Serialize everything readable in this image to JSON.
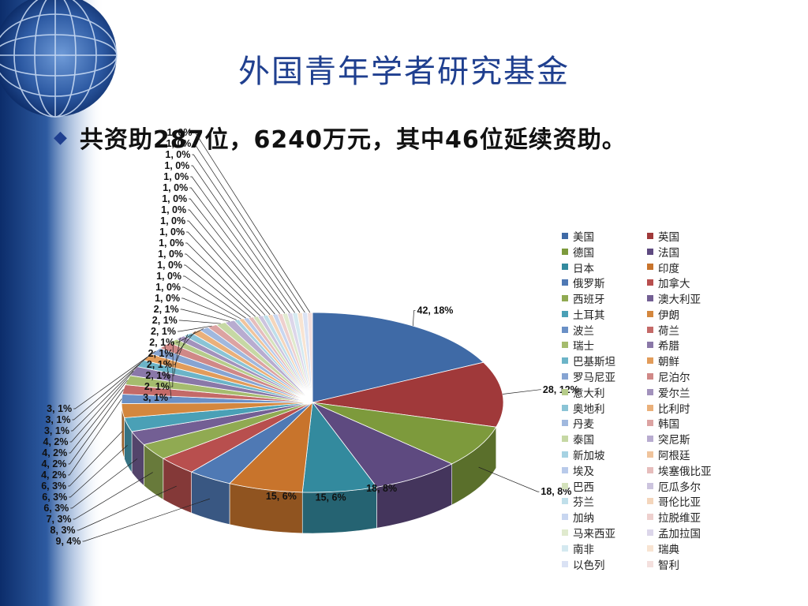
{
  "slide": {
    "title": "外国青年学者研究基金",
    "bullet": "共资助287位，6240万元，其中46位延续资助。"
  },
  "chart_data": {
    "type": "pie",
    "title": "",
    "series": [
      {
        "categories": [
          "美国",
          "英国",
          "德国",
          "法国",
          "日本",
          "印度",
          "俄罗斯",
          "加拿大",
          "西班牙",
          "澳大利亚",
          "土耳其",
          "伊朗",
          "波兰",
          "荷兰",
          "瑞士",
          "希腊",
          "巴基斯坦",
          "朝鲜",
          "罗马尼亚",
          "尼泊尔",
          "意大利",
          "爱尔兰",
          "奥地利",
          "比利时",
          "丹麦",
          "韩国",
          "泰国",
          "突尼斯",
          "新加坡",
          "阿根廷",
          "埃及",
          "埃塞俄比亚",
          "巴西",
          "厄瓜多尔",
          "芬兰",
          "哥伦比亚",
          "加纳",
          "拉脱维亚",
          "马来西亚",
          "孟加拉国",
          "南非",
          "瑞典",
          "以色列",
          "智利"
        ],
        "values": [
          42,
          28,
          18,
          18,
          15,
          15,
          9,
          8,
          7,
          6,
          6,
          6,
          4,
          4,
          4,
          4,
          3,
          3,
          3,
          3,
          2,
          2,
          2,
          2,
          2,
          2,
          2,
          2,
          1,
          1,
          1,
          1,
          1,
          1,
          1,
          1,
          1,
          1,
          1,
          1,
          1,
          1,
          1,
          1
        ],
        "labels": [
          "42, 18%",
          "28, 12%",
          "18, 8%",
          "18, 8%",
          "15, 6%",
          "15, 6%",
          "9, 4%",
          "8, 3%",
          "7, 3%",
          "6, 3%",
          "6, 3%",
          "6, 3%",
          "4, 2%",
          "4, 2%",
          "4, 2%",
          "4, 2%",
          "3, 1%",
          "3, 1%",
          "3, 1%",
          "3, 1%",
          "2, 1%",
          "2, 1%",
          "2, 1%",
          "2, 1%",
          "2, 1%",
          "2, 1%",
          "2, 1%",
          "2, 1%",
          "1, 0%",
          "1, 0%",
          "1, 0%",
          "1, 0%",
          "1, 0%",
          "1, 0%",
          "1, 0%",
          "1, 0%",
          "1, 0%",
          "1, 0%",
          "1, 0%",
          "1, 0%",
          "1, 0%",
          "1, 0%",
          "1, 0%",
          "1, 0%"
        ],
        "colors": [
          "#3f6aa6",
          "#a0393a",
          "#7d9a3c",
          "#5e4a80",
          "#338a9e",
          "#c8742c",
          "#4f79b4",
          "#b84f4e",
          "#90aa52",
          "#735f94",
          "#4aa0b6",
          "#d4873e",
          "#6a90c6",
          "#c46a68",
          "#a5bc6e",
          "#8a78a8",
          "#6cb4c8",
          "#e29c5a",
          "#86a4d2",
          "#d08887",
          "#b6cc8a",
          "#a292bc",
          "#8ac4d6",
          "#eab07a",
          "#a0b8de",
          "#dca3a2",
          "#c6d8a4",
          "#b8acd0",
          "#a6d2e2",
          "#f0c49c",
          "#b8caea",
          "#e6bdbc",
          "#d4e2bc",
          "#ccc4de",
          "#c0dfea",
          "#f4d6bc",
          "#c8d6f0",
          "#eed0ce",
          "#e0eace",
          "#dcd6ea",
          "#d4e9f0",
          "#f8e4d2",
          "#dae2f4",
          "#f4e0de"
        ]
      }
    ]
  }
}
